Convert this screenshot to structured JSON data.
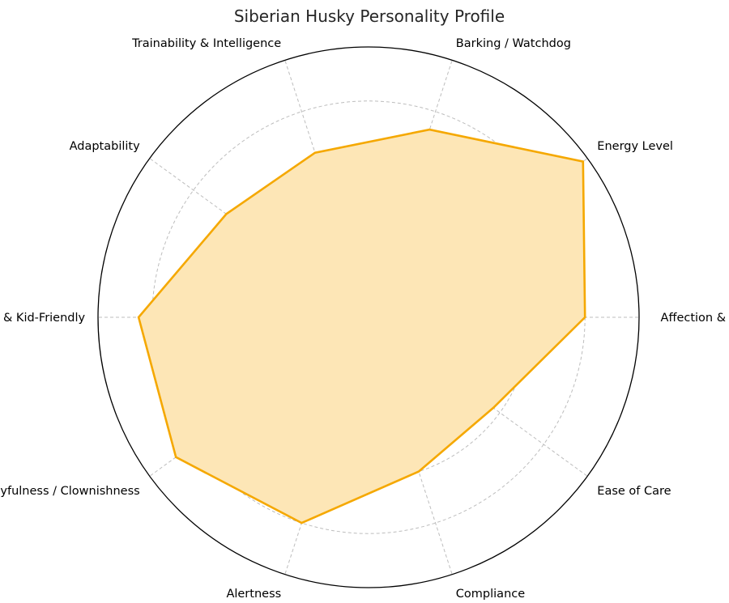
{
  "chart_data": {
    "type": "radar",
    "title": "Siberian Husky Personality Profile",
    "categories": [
      "Affection & Clinginess",
      "Energy Level",
      "Barking / Watchdog",
      "Trainability & Intelligence",
      "Adaptability",
      "Sociability & Kid-Friendly",
      "Playfulness / Clownishness",
      "Alertness",
      "Compliance",
      "Ease of Care"
    ],
    "values": [
      8.0,
      9.8,
      7.3,
      6.4,
      6.5,
      8.5,
      8.8,
      8.0,
      6.0,
      5.7
    ],
    "rmax": 10,
    "ring_levels": [
      2,
      4,
      6,
      8,
      10
    ],
    "grid": true,
    "series_color": "#f5a800",
    "fill_color": "#fde6b6"
  }
}
